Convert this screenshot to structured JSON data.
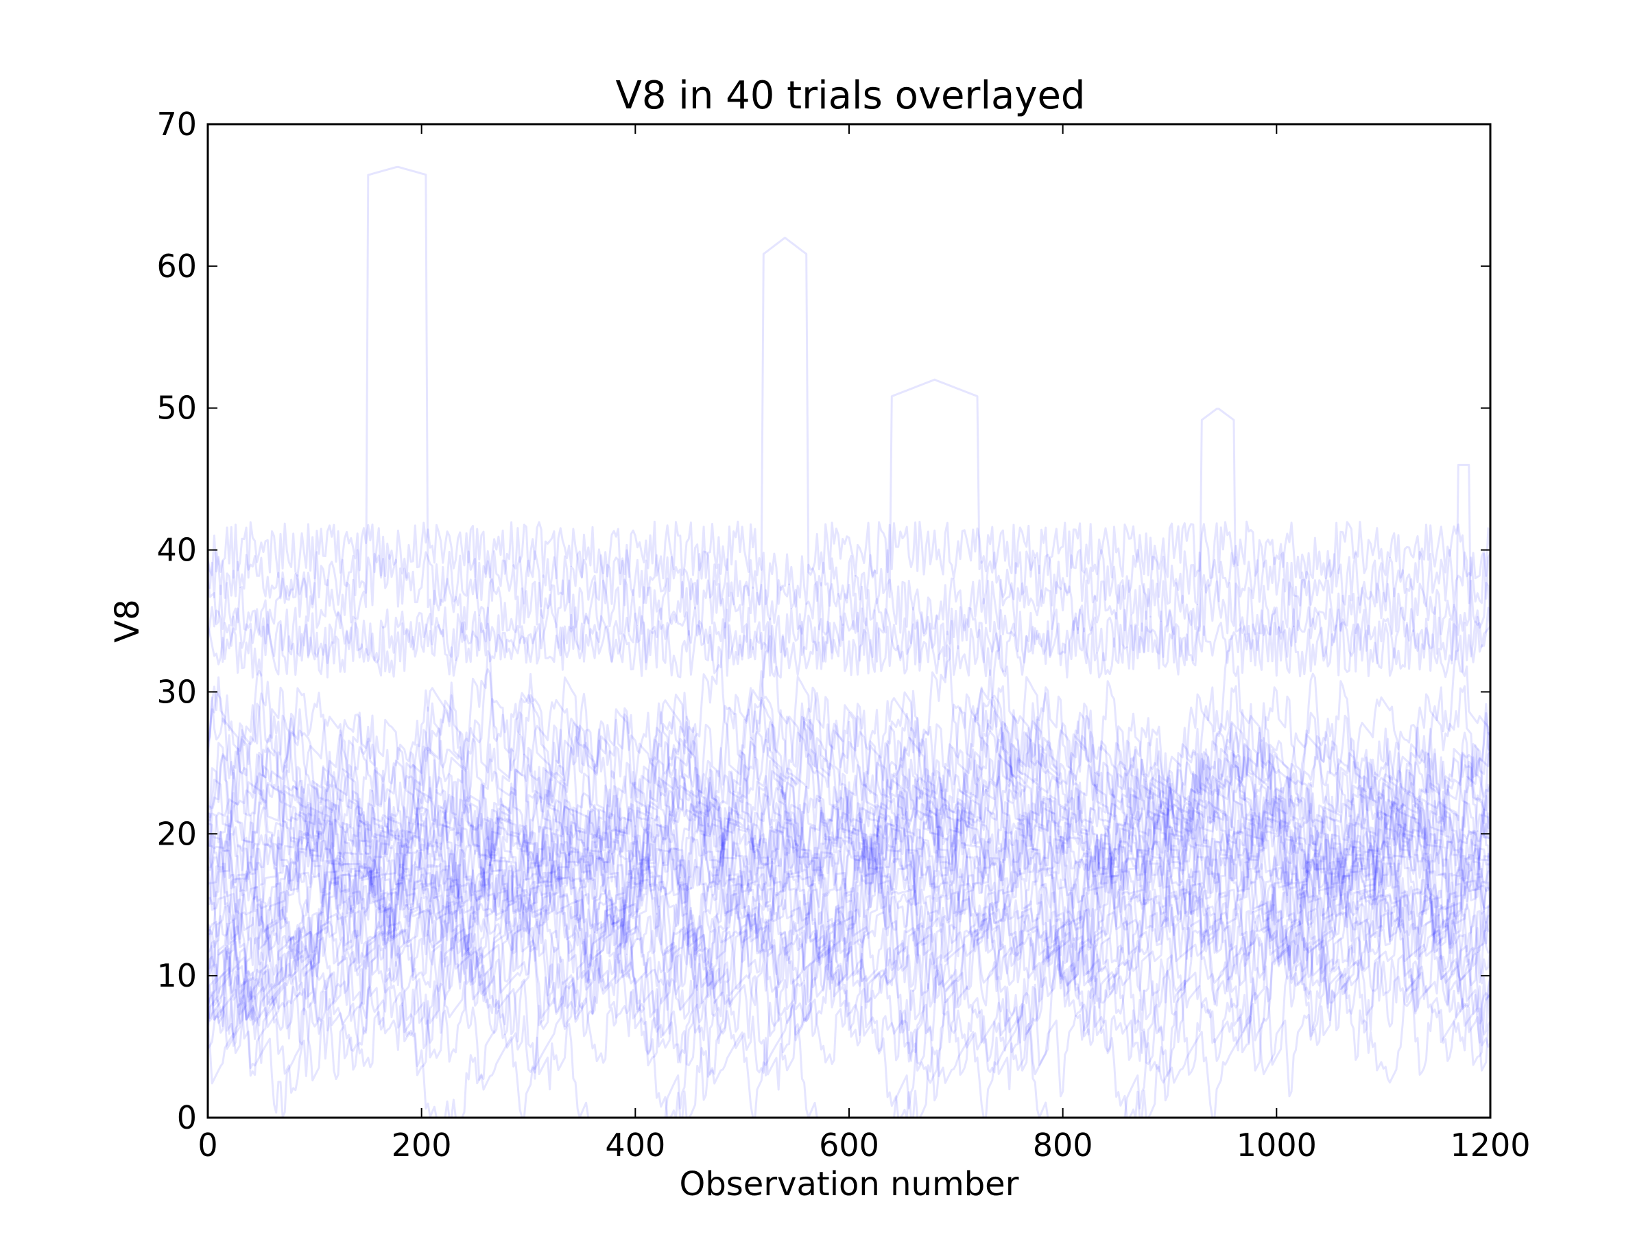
{
  "chart_data": {
    "type": "line",
    "title": "V8 in 40 trials overlayed",
    "xlabel": "Observation number",
    "ylabel": "V8",
    "xlim": [
      0,
      1200
    ],
    "ylim": [
      0,
      70
    ],
    "xticks": [
      0,
      200,
      400,
      600,
      800,
      1000,
      1200
    ],
    "yticks": [
      0,
      10,
      20,
      30,
      40,
      50,
      60,
      70
    ],
    "grid": false,
    "legend": "none",
    "n_trials": 40,
    "n_observations": 1200,
    "line_color": "#0000ff",
    "line_alpha": 0.1,
    "highlights": {
      "peak_a": {
        "x": [
          150,
          205
        ],
        "y": [
          65,
          67
        ]
      },
      "peak_b": {
        "x": [
          520,
          560
        ],
        "y": [
          58,
          62
        ]
      },
      "peak_c": {
        "x": [
          640,
          720
        ],
        "y": [
          48,
          52
        ]
      },
      "peak_d": {
        "x": [
          930,
          960
        ],
        "y": [
          47,
          50
        ]
      },
      "peak_e": {
        "x": [
          1170,
          1180
        ],
        "y": [
          46,
          46
        ]
      }
    },
    "typical_range": [
      0,
      40
    ],
    "central_value": 18
  }
}
